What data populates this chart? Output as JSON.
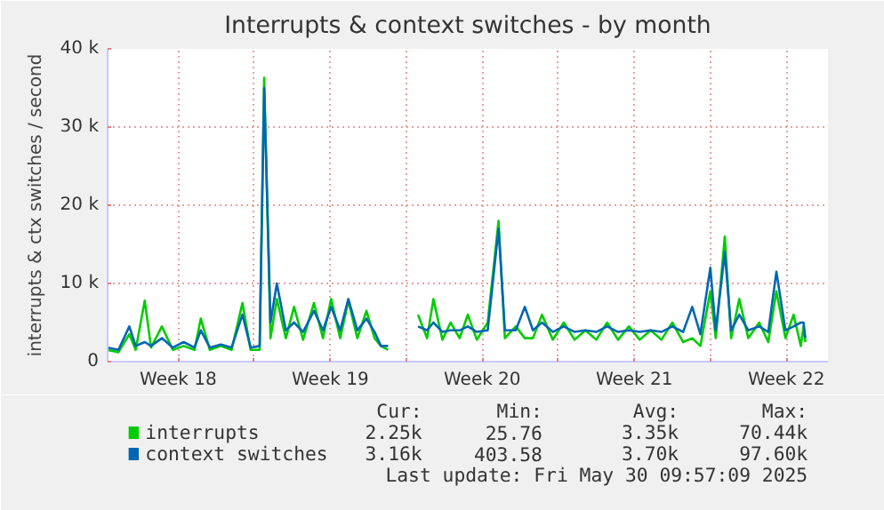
{
  "chart_data": {
    "type": "line",
    "title": "Interrupts & context switches - by month",
    "ylabel": "interrupts & ctx switches / second",
    "x": [
      "2025-04-28T06:00",
      "2025-04-28T18:00",
      "2025-04-29T06:00",
      "2025-04-29T13:00",
      "2025-04-29T23:00",
      "2025-04-30T06:00",
      "2025-04-30T18:00",
      "2025-05-01T06:00",
      "2025-05-01T18:00",
      "2025-05-02T06:00",
      "2025-05-02T13:00",
      "2025-05-02T23:00",
      "2025-05-03T11:00",
      "2025-05-03T23:00",
      "2025-05-04T11:00",
      "2025-05-04T20:00",
      "2025-05-05T06:00",
      "2025-05-05T11:00",
      "2025-05-05T18:00",
      "2025-05-06T01:00",
      "2025-05-06T11:00",
      "2025-05-06T20:00",
      "2025-05-07T06:00",
      "2025-05-07T18:00",
      "2025-05-08T04:00",
      "2025-05-08T13:00",
      "2025-05-08T23:00",
      "2025-05-09T08:00",
      "2025-05-09T18:00",
      "2025-05-10T04:00",
      "2025-05-10T13:00",
      "2025-05-10T20:00",
      "2025-05-11T04:00",
      "2025-05-11T20:00",
      "2025-05-12T13:00",
      "2025-05-12T23:00",
      "2025-05-13T06:00",
      "2025-05-13T16:00",
      "2025-05-14T01:00",
      "2025-05-14T11:00",
      "2025-05-14T20:00",
      "2025-05-15T06:00",
      "2025-05-15T18:00",
      "2025-05-16T06:00",
      "2025-05-16T13:00",
      "2025-05-17T01:00",
      "2025-05-17T11:00",
      "2025-05-17T20:00",
      "2025-05-18T06:00",
      "2025-05-18T18:00",
      "2025-05-19T06:00",
      "2025-05-19T18:00",
      "2025-05-20T06:00",
      "2025-05-20T18:00",
      "2025-05-21T06:00",
      "2025-05-21T18:00",
      "2025-05-22T06:00",
      "2025-05-22T18:00",
      "2025-05-23T06:00",
      "2025-05-23T18:00",
      "2025-05-24T06:00",
      "2025-05-24T18:00",
      "2025-05-25T04:00",
      "2025-05-25T13:00",
      "2025-05-26T00:00",
      "2025-05-26T06:00",
      "2025-05-26T16:00",
      "2025-05-26T23:00",
      "2025-05-27T08:00",
      "2025-05-27T18:00",
      "2025-05-28T06:00",
      "2025-05-28T16:00",
      "2025-05-29T01:00",
      "2025-05-29T11:00",
      "2025-05-29T20:00",
      "2025-05-30T04:00",
      "2025-05-30T07:00",
      "2025-05-30T09:00"
    ],
    "series": [
      {
        "name": "interrupts",
        "color": "#00cc00",
        "values": [
          1500,
          1200,
          3500,
          1500,
          7800,
          1800,
          4500,
          1500,
          2000,
          1500,
          5500,
          1500,
          2000,
          1500,
          7500,
          1500,
          1500,
          36300,
          3000,
          8000,
          3000,
          7000,
          2800,
          7500,
          3000,
          8000,
          3000,
          7800,
          3000,
          6500,
          3000,
          2000,
          1500,
          null,
          6000,
          3000,
          8000,
          2800,
          5000,
          3000,
          6000,
          2800,
          5000,
          18000,
          3000,
          4500,
          3000,
          3000,
          6000,
          2800,
          5000,
          2800,
          4000,
          2800,
          5000,
          2800,
          4500,
          2800,
          4000,
          2800,
          5000,
          2500,
          3000,
          2000,
          9000,
          3000,
          16000,
          3000,
          8000,
          3000,
          5000,
          2500,
          9000,
          3000,
          6000,
          2000,
          4500,
          2500
        ]
      },
      {
        "name": "context switches",
        "color": "#0066b3",
        "values": [
          1800,
          1500,
          4500,
          2000,
          2500,
          2000,
          3000,
          1800,
          2500,
          1800,
          4000,
          1800,
          2200,
          1800,
          6000,
          1800,
          2000,
          35000,
          5000,
          10000,
          4000,
          5000,
          3800,
          6500,
          4000,
          7000,
          4000,
          8000,
          4000,
          5500,
          3800,
          2000,
          2000,
          null,
          4500,
          4000,
          5000,
          3800,
          4000,
          4000,
          4500,
          3800,
          4000,
          17000,
          4000,
          4000,
          7000,
          4000,
          5000,
          3800,
          4500,
          3800,
          4000,
          3800,
          4500,
          3800,
          4000,
          3800,
          4000,
          3800,
          4500,
          3800,
          7000,
          3500,
          12000,
          4000,
          14000,
          4000,
          6000,
          4000,
          4500,
          3800,
          11500,
          4000,
          4500,
          5000,
          5000,
          3000
        ]
      }
    ],
    "xlim": [
      "2025-04-28T06:00",
      "2025-05-31T10:00"
    ],
    "xticks": [
      {
        "value": "2025-05-01T12:00",
        "label": "Week 18"
      },
      {
        "value": "2025-05-05",
        "label": null
      },
      {
        "value": "2025-05-08T12:00",
        "label": "Week 19"
      },
      {
        "value": "2025-05-12",
        "label": null
      },
      {
        "value": "2025-05-15T12:00",
        "label": "Week 20"
      },
      {
        "value": "2025-05-19",
        "label": null
      },
      {
        "value": "2025-05-22T12:00",
        "label": "Week 21"
      },
      {
        "value": "2025-05-26",
        "label": null
      },
      {
        "value": "2025-05-29T12:00",
        "label": "Week 22"
      }
    ],
    "ylim": [
      0,
      40000
    ],
    "yticks": [
      {
        "value": 0,
        "label": "0"
      },
      {
        "value": 10000,
        "label": "10 k"
      },
      {
        "value": 20000,
        "label": "20 k"
      },
      {
        "value": 30000,
        "label": "30 k"
      },
      {
        "value": 40000,
        "label": "40 k"
      }
    ],
    "grid": true,
    "legend": "bottom",
    "marker": "none",
    "line_style": "solid",
    "annotations": [
      "Cur:",
      "Min:",
      "Avg:",
      "Max:",
      "2.25k",
      "25.76",
      "3.35k",
      "70.44k",
      "3.16k",
      "403.58",
      "3.70k",
      "97.60k",
      "Last update: Fri May 30 09:57:09 2025"
    ]
  }
}
